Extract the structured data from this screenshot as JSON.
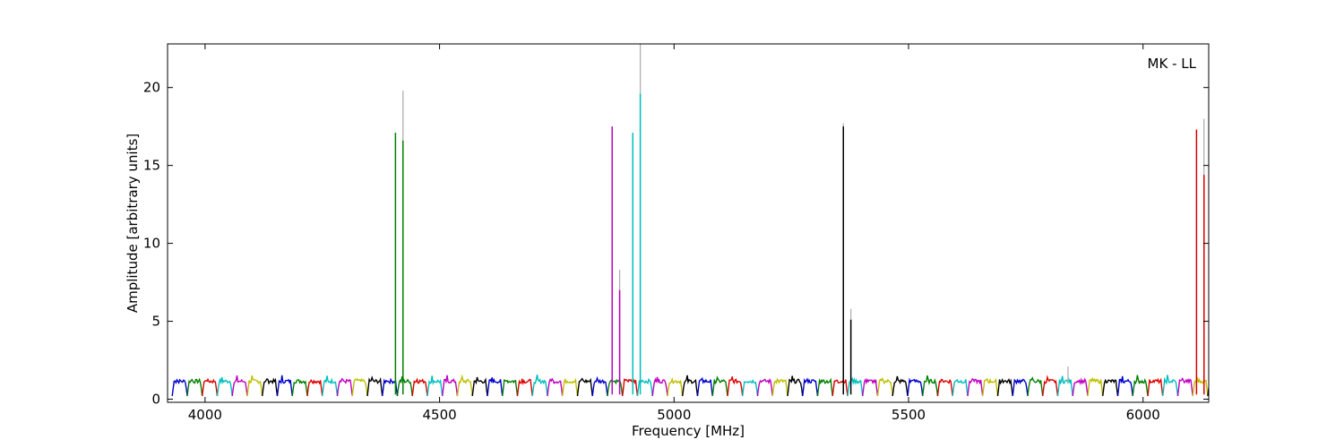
{
  "chart_data": {
    "type": "line",
    "title": "",
    "annotation": "MK - LL",
    "xlabel": "Frequency [MHz]",
    "ylabel": "Amplitude [arbitrary units]",
    "xlim": [
      3920,
      6140
    ],
    "ylim": [
      -0.2,
      22.8
    ],
    "xticks": [
      4000,
      4500,
      5000,
      5500,
      6000
    ],
    "yticks": [
      0,
      5,
      10,
      15,
      20
    ],
    "grid": false,
    "legend": "none",
    "bands": {
      "start": 3930,
      "width": 32,
      "colors": [
        "#0000cc",
        "#007f00",
        "#dd0000",
        "#00bfbf",
        "#bf00bf",
        "#bfbf00",
        "#000000"
      ],
      "baseline": 1.15,
      "dip": 0.2
    },
    "series": [
      {
        "color": "#007f00",
        "spikes": [
          {
            "x": 4406,
            "y": 17.1
          },
          {
            "x": 4422,
            "y": 16.6
          }
        ]
      },
      {
        "color": "#bf00bf",
        "spikes": [
          {
            "x": 4868,
            "y": 17.5
          },
          {
            "x": 4884,
            "y": 7.0
          }
        ]
      },
      {
        "color": "#00bfbf",
        "spikes": [
          {
            "x": 4912,
            "y": 17.1
          },
          {
            "x": 4928,
            "y": 19.6
          }
        ]
      },
      {
        "color": "#000000",
        "spikes": [
          {
            "x": 5361,
            "y": 17.5
          },
          {
            "x": 5377,
            "y": 5.1
          }
        ]
      },
      {
        "color": "#dd0000",
        "spikes": [
          {
            "x": 6114,
            "y": 17.3
          },
          {
            "x": 6130,
            "y": 14.4
          }
        ]
      }
    ],
    "reference_spikes": [
      {
        "x": 4422,
        "y": 19.8
      },
      {
        "x": 4884,
        "y": 8.3
      },
      {
        "x": 4928,
        "y": 22.8
      },
      {
        "x": 5377,
        "y": 5.8
      },
      {
        "x": 5361,
        "y": 17.7
      },
      {
        "x": 6130,
        "y": 18.0
      },
      {
        "x": 5840,
        "y": 2.1
      }
    ],
    "colors": {
      "reference": "#b0b0b0",
      "axes": "#000000"
    }
  }
}
